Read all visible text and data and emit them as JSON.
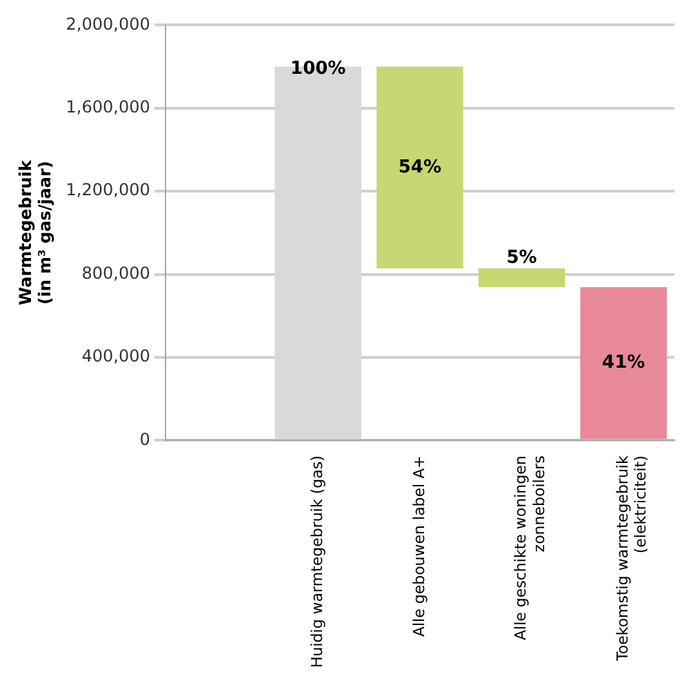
{
  "chart_data": {
    "type": "bar",
    "ylabel": "Warmtegebruik\n(in m³ gas/jaar)",
    "categories": [
      null,
      "Huidig warmtegebruik (gas)",
      "Alle gebouwen label A+",
      "Alle geschikte woningen\nzonneboilers",
      "Toekomstig warmtegebruik\n(elektriciteit)"
    ],
    "values": [
      null,
      1800000,
      972000,
      90000,
      738000
    ],
    "base": [
      null,
      0,
      828000,
      738000,
      0
    ],
    "colors": [
      "#d9d9d9",
      "#d9d9d9",
      "#c6d871",
      "#c6d871",
      "#e8899a"
    ],
    "annotations": [
      "100%",
      "54%",
      "5%",
      "41%"
    ],
    "ylim": [
      0,
      2000000
    ],
    "yticks": [
      {
        "value": 0,
        "label": "0"
      },
      {
        "value": 400000,
        "label": "400,000"
      },
      {
        "value": 800000,
        "label": "800,000"
      },
      {
        "value": 1200000,
        "label": "1,200,000"
      },
      {
        "value": 1600000,
        "label": "1,600,000"
      },
      {
        "value": 2000000,
        "label": "2,000,000"
      }
    ],
    "grid": "y",
    "legend": false
  }
}
